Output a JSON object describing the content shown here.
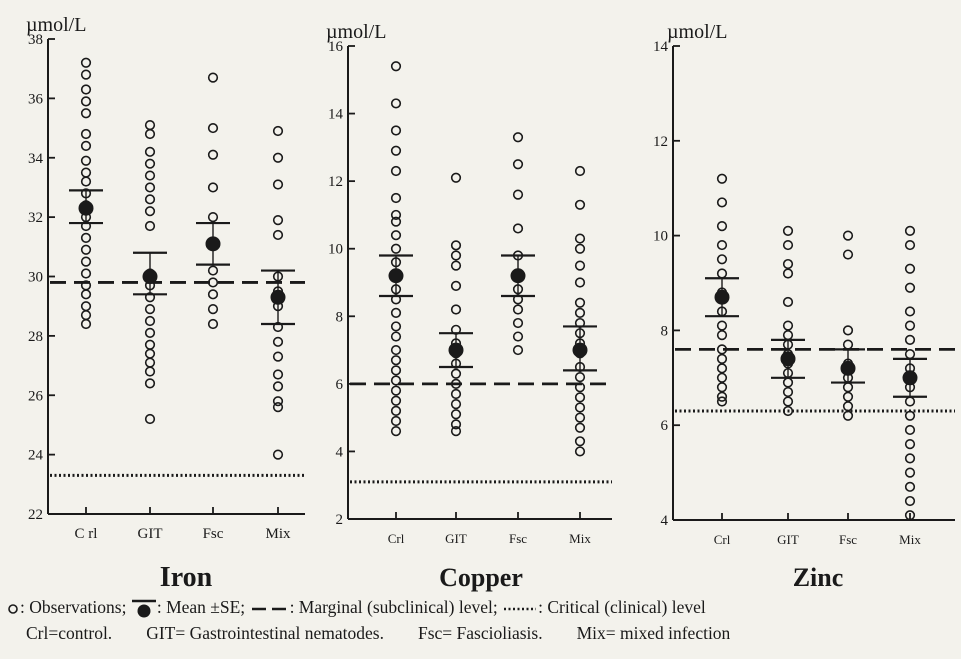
{
  "chart_data": [
    {
      "type": "scatter",
      "title": "Iron",
      "unit": "µmol/L",
      "categories": [
        "C rl",
        "GIT",
        "Fsc",
        "Mix"
      ],
      "ylim": [
        22,
        38
      ],
      "yticks": [
        22,
        24,
        26,
        28,
        30,
        32,
        34,
        36,
        38
      ],
      "marginal_level": 29.8,
      "critical_level": 23.3,
      "observations": [
        [
          37.2,
          36.8,
          36.3,
          35.9,
          35.5,
          34.8,
          34.4,
          33.9,
          33.5,
          33.2,
          32.8,
          32.4,
          32.0,
          31.7,
          31.3,
          30.9,
          30.5,
          30.1,
          29.7,
          29.4,
          29.0,
          28.7,
          28.4
        ],
        [
          35.1,
          34.8,
          34.2,
          33.8,
          33.4,
          33.0,
          32.6,
          32.2,
          31.7,
          30.1,
          29.7,
          29.3,
          28.9,
          28.5,
          28.1,
          27.7,
          27.4,
          27.1,
          26.8,
          26.4,
          25.2
        ],
        [
          36.7,
          35.0,
          34.1,
          33.0,
          32.0,
          31.1,
          30.2,
          29.8,
          29.4,
          28.9,
          28.4
        ],
        [
          34.9,
          34.0,
          33.1,
          31.9,
          31.4,
          30.0,
          29.5,
          29.0,
          28.3,
          27.8,
          27.3,
          26.7,
          26.3,
          25.8,
          25.6,
          24.0
        ]
      ],
      "mean": [
        32.3,
        30.0,
        31.1,
        29.3
      ],
      "se_upper": [
        32.9,
        30.8,
        31.8,
        30.2
      ],
      "se_lower": [
        31.8,
        29.4,
        30.4,
        28.4
      ]
    },
    {
      "type": "scatter",
      "title": "Copper",
      "unit": "µmol/L",
      "categories": [
        "Crl",
        "GIT",
        "Fsc",
        "Mix"
      ],
      "ylim": [
        2,
        16
      ],
      "yticks": [
        2,
        4,
        6,
        8,
        10,
        12,
        14,
        16
      ],
      "marginal_level": 6.0,
      "critical_level": 3.1,
      "observations": [
        [
          15.4,
          14.3,
          13.5,
          12.9,
          12.3,
          11.5,
          11.0,
          10.8,
          10.4,
          10.0,
          9.6,
          9.2,
          8.8,
          8.5,
          8.1,
          7.7,
          7.4,
          7.0,
          6.7,
          6.4,
          6.1,
          5.8,
          5.5,
          5.2,
          4.9,
          4.6
        ],
        [
          12.1,
          10.1,
          9.8,
          9.5,
          8.9,
          8.2,
          7.6,
          7.2,
          6.9,
          6.6,
          6.3,
          6.0,
          5.7,
          5.4,
          5.1,
          4.8,
          4.6
        ],
        [
          13.3,
          12.5,
          11.6,
          10.6,
          9.8,
          9.2,
          8.8,
          8.5,
          8.2,
          7.8,
          7.4,
          7.0
        ],
        [
          12.3,
          11.3,
          10.3,
          10.0,
          9.5,
          9.0,
          8.4,
          8.1,
          7.8,
          7.5,
          7.2,
          6.9,
          6.5,
          6.2,
          5.9,
          5.6,
          5.3,
          5.0,
          4.7,
          4.3,
          4.0
        ]
      ],
      "mean": [
        9.2,
        7.0,
        9.2,
        7.0
      ],
      "se_upper": [
        9.8,
        7.5,
        9.8,
        7.7
      ],
      "se_lower": [
        8.6,
        6.5,
        8.6,
        6.4
      ]
    },
    {
      "type": "scatter",
      "title": "Zinc",
      "unit": "µmol/L",
      "categories": [
        "Crl",
        "GIT",
        "Fsc",
        "Mix"
      ],
      "ylim": [
        4,
        14
      ],
      "yticks": [
        4,
        6,
        8,
        10,
        12,
        14
      ],
      "marginal_level": 7.6,
      "critical_level": 6.3,
      "observations": [
        [
          11.2,
          10.7,
          10.2,
          9.8,
          9.5,
          9.2,
          8.8,
          8.4,
          8.1,
          7.9,
          7.6,
          7.4,
          7.2,
          7.0,
          6.8,
          6.6,
          6.5
        ],
        [
          10.1,
          9.8,
          9.4,
          9.2,
          8.6,
          8.1,
          7.9,
          7.7,
          7.5,
          7.3,
          7.1,
          6.9,
          6.7,
          6.5,
          6.3
        ],
        [
          10.0,
          9.6,
          8.0,
          7.7,
          7.3,
          7.0,
          6.8,
          6.6,
          6.4,
          6.2
        ],
        [
          10.1,
          9.8,
          9.3,
          8.9,
          8.4,
          8.1,
          7.8,
          7.5,
          7.2,
          6.8,
          6.5,
          6.2,
          5.9,
          5.6,
          5.3,
          5.0,
          4.7,
          4.4,
          4.1
        ]
      ],
      "mean": [
        8.7,
        7.4,
        7.2,
        7.0
      ],
      "se_upper": [
        9.1,
        7.8,
        7.6,
        7.4
      ],
      "se_lower": [
        8.3,
        7.0,
        6.9,
        6.6
      ]
    }
  ],
  "legend": {
    "observations": ": Observations;",
    "mean_se": ": Mean ±SE;",
    "marginal": ": Marginal (subclinical) level;",
    "critical": ": Critical (clinical) level",
    "abbrev_crl": "Crl=control.",
    "abbrev_git": "GIT= Gastrointestinal nematodes.",
    "abbrev_fsc": "Fsc= Fascioliasis.",
    "abbrev_mix": "Mix= mixed infection"
  },
  "colors": {
    "ink": "#1a1a1a",
    "background": "#f3f2ec"
  }
}
